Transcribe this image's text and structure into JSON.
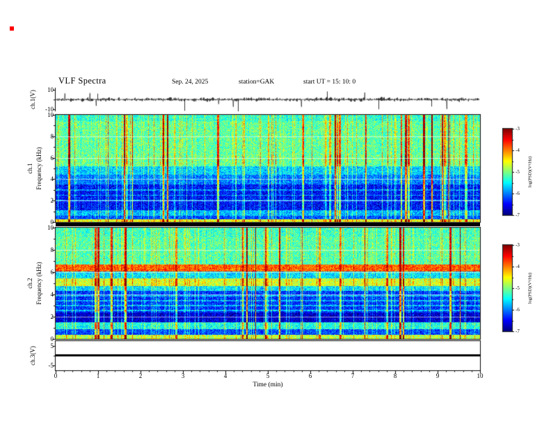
{
  "header": {
    "title": "VLF Spectra",
    "date": "Sep. 24, 2025",
    "station": "station=GAK",
    "start_ut": "start UT =  15: 10: 0"
  },
  "colors": {
    "background": "#ffffff",
    "trace": "#000000",
    "marker_red": "#ff0000",
    "colormap": "jet (dark blue → blue → cyan → green → yellow → red)"
  },
  "xaxis": {
    "label": "Time (min)",
    "ticks": [
      "0",
      "1",
      "2",
      "3",
      "4",
      "5",
      "6",
      "7",
      "8",
      "9",
      "10"
    ],
    "range_min": [
      0,
      10
    ]
  },
  "colorbar": {
    "label": "log(PSD)(V²/Hz)",
    "ticks": [
      "-3",
      "-4",
      "-5",
      "-6",
      "-7"
    ],
    "range": [
      -7,
      -3
    ]
  },
  "chart_data": [
    {
      "type": "line",
      "name": "ch1-waveform",
      "ylabel": "ch.1(V)",
      "ylim": [
        -10,
        10
      ],
      "yticks": [
        "10",
        "-10"
      ],
      "xlim_min": [
        0,
        10
      ],
      "summary": "broadband noise centered on 0 V, ~±2 V, with impulsive spikes reaching ±10 V (largest downward spikes near 3.0 and 7.6 min)"
    },
    {
      "type": "heatmap",
      "name": "ch1-spectrogram",
      "ylabel_ch": "ch.1",
      "ylabel_freq": "Frequency (kHz)",
      "ylim_khz": [
        0,
        10
      ],
      "yticks": [
        "10",
        "8",
        "6",
        "4",
        "2",
        "0"
      ],
      "xlim_min": [
        0,
        10
      ],
      "clim_log_psd": [
        -7,
        -3
      ],
      "colormap": "jet",
      "bands": [
        {
          "freq_khz": [
            5.2,
            10
          ],
          "level_log_psd": -5.3,
          "appearance": "green-cyan with dense yellow sferic streaks"
        },
        {
          "freq_khz": [
            3.5,
            5.2
          ],
          "level_log_psd": -6.0,
          "appearance": "blue-cyan"
        },
        {
          "freq_khz": [
            1.1,
            3.5
          ],
          "level_log_psd": -6.6,
          "appearance": "dark blue with harmonic lines near 2-3 kHz"
        },
        {
          "freq_khz": [
            0.6,
            1.1
          ],
          "level_log_psd": -5.9,
          "appearance": "cyan band"
        },
        {
          "freq_khz": [
            0,
            0.3
          ],
          "level_log_psd": -4.7,
          "appearance": "bright line at bottom edge"
        }
      ],
      "impulses": "dense vertical broadband streaks (sferics) throughout the 10 min record"
    },
    {
      "type": "heatmap",
      "name": "ch2-spectrogram",
      "ylabel_ch": "ch.2",
      "ylabel_freq": "Frequency (kHz)",
      "ylim_khz": [
        0,
        10
      ],
      "yticks": [
        "10",
        "8",
        "6",
        "4",
        "2",
        "0"
      ],
      "xlim_min": [
        0,
        10
      ],
      "clim_log_psd": [
        -7,
        -3
      ],
      "colormap": "jet",
      "bands": [
        {
          "freq_khz": [
            6.7,
            10
          ],
          "level_log_psd": -5.3,
          "appearance": "green-cyan"
        },
        {
          "freq_khz": [
            6.05,
            6.7
          ],
          "level_log_psd": -3.9,
          "appearance": "strong yellow-orange band"
        },
        {
          "freq_khz": [
            5.45,
            6.05
          ],
          "level_log_psd": -5.75,
          "appearance": "blue-cyan"
        },
        {
          "freq_khz": [
            4.75,
            5.45
          ],
          "level_log_psd": -4.8,
          "appearance": "green band"
        },
        {
          "freq_khz": [
            2.4,
            4.3
          ],
          "level_log_psd": -6.45,
          "appearance": "dark blue, speckled, thin harmonic lines"
        },
        {
          "freq_khz": [
            1.5,
            2.4
          ],
          "level_log_psd": -6.85,
          "appearance": "darkest band"
        },
        {
          "freq_khz": [
            0.85,
            1.5
          ],
          "level_log_psd": -5.55,
          "appearance": "cyan band"
        },
        {
          "freq_khz": [
            0,
            0.4
          ],
          "level_log_psd": -4.9,
          "appearance": "bright line at bottom edge"
        }
      ],
      "impulses": "vertical broadband streaks aligned with ch.1 sferics"
    },
    {
      "type": "line",
      "name": "ch3-flatline",
      "ylabel": "ch.3(V)",
      "ylim": [
        -5,
        5
      ],
      "yticks": [
        "5",
        "-5"
      ],
      "summary": "constant 0 V (flat thick black line across full record)"
    }
  ]
}
